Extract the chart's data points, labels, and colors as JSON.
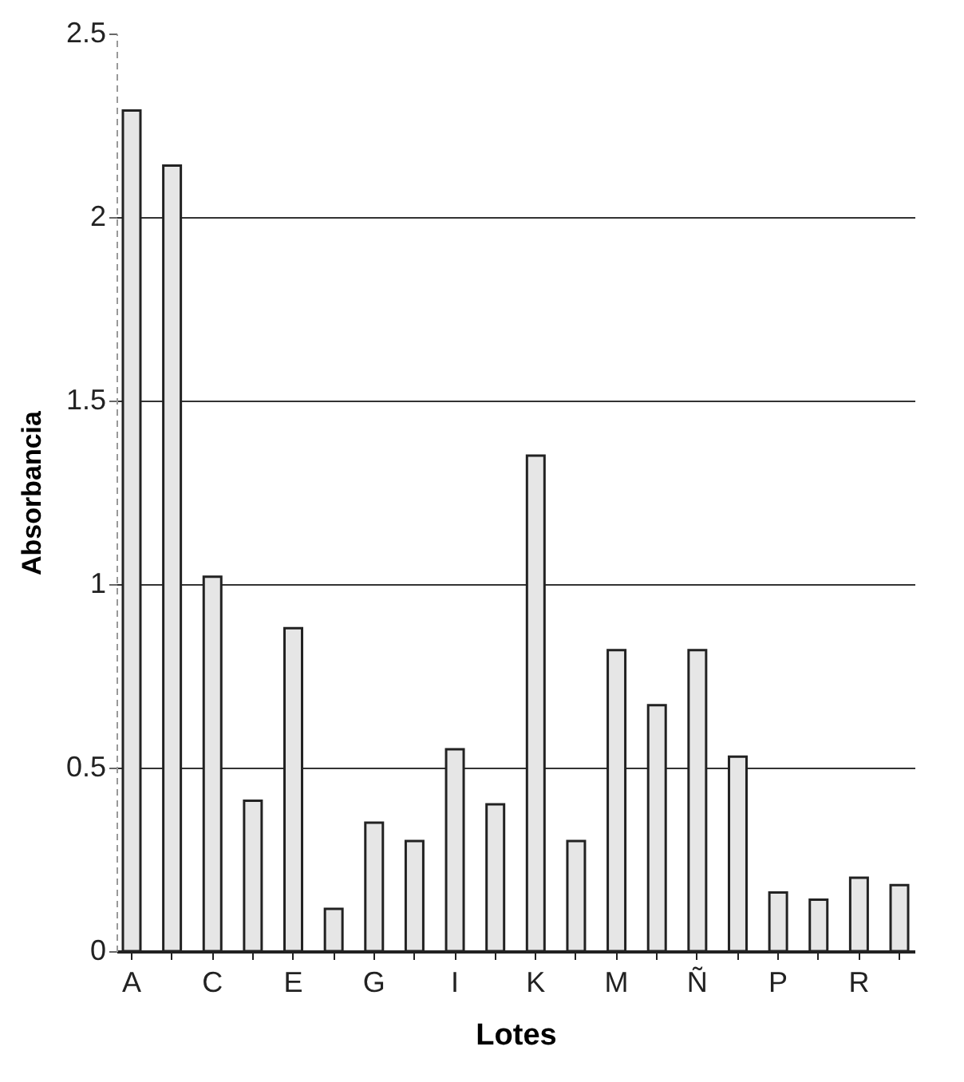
{
  "chart_data": {
    "type": "bar",
    "xlabel": "Lotes",
    "ylabel": "Absorbancia",
    "categories": [
      "A",
      null,
      "C",
      null,
      "E",
      null,
      "G",
      null,
      "I",
      null,
      "K",
      null,
      "M",
      null,
      "Ñ",
      null,
      "P",
      null,
      "R",
      null
    ],
    "values": [
      2.29,
      2.14,
      1.02,
      0.41,
      0.88,
      0.115,
      0.35,
      0.3,
      0.55,
      0.4,
      1.35,
      0.3,
      0.82,
      0.67,
      0.82,
      0.53,
      0.16,
      0.14,
      0.2,
      0.18
    ],
    "color": "#e6e6e6",
    "ylim": [
      0,
      2.5
    ],
    "yticks": [
      0,
      0.5,
      1,
      1.5,
      2,
      2.5
    ],
    "grid": "y"
  }
}
